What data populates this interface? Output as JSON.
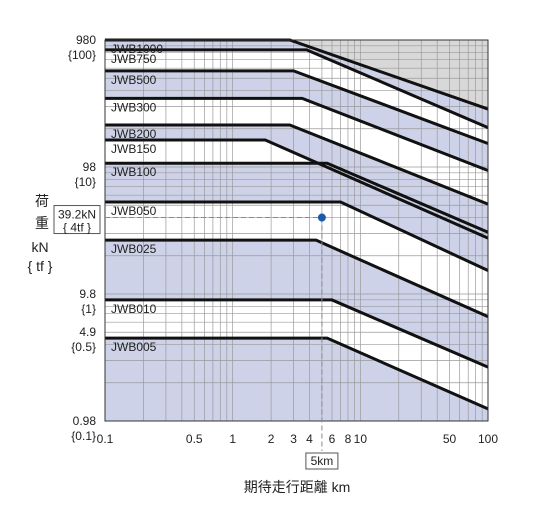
{
  "chart_data": {
    "type": "line",
    "xlabel": "期待走行距離 km",
    "ylabel_chars": [
      "荷",
      "重"
    ],
    "ylabel_unit_1": "kN",
    "ylabel_unit_2": "{ tf }",
    "x_scale": "log",
    "y_scale": "log",
    "xlim": [
      0.1,
      100
    ],
    "ylim": [
      0.98,
      980
    ],
    "grid": true,
    "x_ticks": [
      {
        "value": 0.1,
        "label": "0.1"
      },
      {
        "value": 0.5,
        "label": "0.5"
      },
      {
        "value": 1,
        "label": "1"
      },
      {
        "value": 2,
        "label": "2"
      },
      {
        "value": 3,
        "label": "3"
      },
      {
        "value": 4,
        "label": "4"
      },
      {
        "value": 6,
        "label": "6"
      },
      {
        "value": 8,
        "label": "8"
      },
      {
        "value": 10,
        "label": "10"
      },
      {
        "value": 50,
        "label": "50"
      },
      {
        "value": 100,
        "label": "100"
      }
    ],
    "y_ticks": [
      {
        "value": 980,
        "label": "980",
        "sub": "{100}"
      },
      {
        "value": 98,
        "label": "98",
        "sub": "{10}"
      },
      {
        "value": 9.8,
        "label": "9.8",
        "sub": "{1}"
      },
      {
        "value": 4.9,
        "label": "4.9",
        "sub": "{0.5}"
      },
      {
        "value": 0.98,
        "label": "0.98",
        "sub": "{0.1}"
      }
    ],
    "series": [
      {
        "name": "JWB1000",
        "points": [
          [
            0.1,
            980
          ],
          [
            2.8,
            980
          ],
          [
            100,
            280
          ]
        ]
      },
      {
        "name": "JWB750",
        "points": [
          [
            0.1,
            820
          ],
          [
            3.8,
            820
          ],
          [
            100,
            200
          ]
        ]
      },
      {
        "name": "JWB500",
        "points": [
          [
            0.1,
            560
          ],
          [
            3.0,
            560
          ],
          [
            100,
            150
          ]
        ]
      },
      {
        "name": "JWB300",
        "points": [
          [
            0.1,
            340
          ],
          [
            3.5,
            340
          ],
          [
            100,
            92
          ]
        ]
      },
      {
        "name": "JWB200",
        "points": [
          [
            0.1,
            210
          ],
          [
            2.8,
            210
          ],
          [
            100,
            50
          ]
        ]
      },
      {
        "name": "JWB150",
        "points": [
          [
            0.1,
            160
          ],
          [
            1.8,
            160
          ],
          [
            100,
            27
          ]
        ]
      },
      {
        "name": "JWB100",
        "points": [
          [
            0.1,
            105
          ],
          [
            5.5,
            105
          ],
          [
            100,
            30
          ]
        ]
      },
      {
        "name": "JWB050",
        "points": [
          [
            0.1,
            52
          ],
          [
            7.0,
            52
          ],
          [
            100,
            15
          ]
        ]
      },
      {
        "name": "JWB025",
        "points": [
          [
            0.1,
            26
          ],
          [
            4.5,
            26
          ],
          [
            100,
            6.5
          ]
        ]
      },
      {
        "name": "JWB010",
        "points": [
          [
            0.1,
            8.8
          ],
          [
            6.0,
            8.8
          ],
          [
            100,
            2.6
          ]
        ]
      },
      {
        "name": "JWB005",
        "points": [
          [
            0.1,
            4.4
          ],
          [
            5.5,
            4.4
          ],
          [
            100,
            1.22
          ]
        ]
      }
    ],
    "annotation": {
      "point": [
        5,
        39.2
      ],
      "y_label_1": "39.2kN",
      "y_label_2": "{ 4tf }",
      "x_label": "5km",
      "point_color": "#1a5aa6"
    },
    "colors": {
      "band_fill": "#cdd2e8",
      "top_fill": "#d8d8d8",
      "line": "#111111",
      "grid": "#9a9a9a"
    }
  }
}
